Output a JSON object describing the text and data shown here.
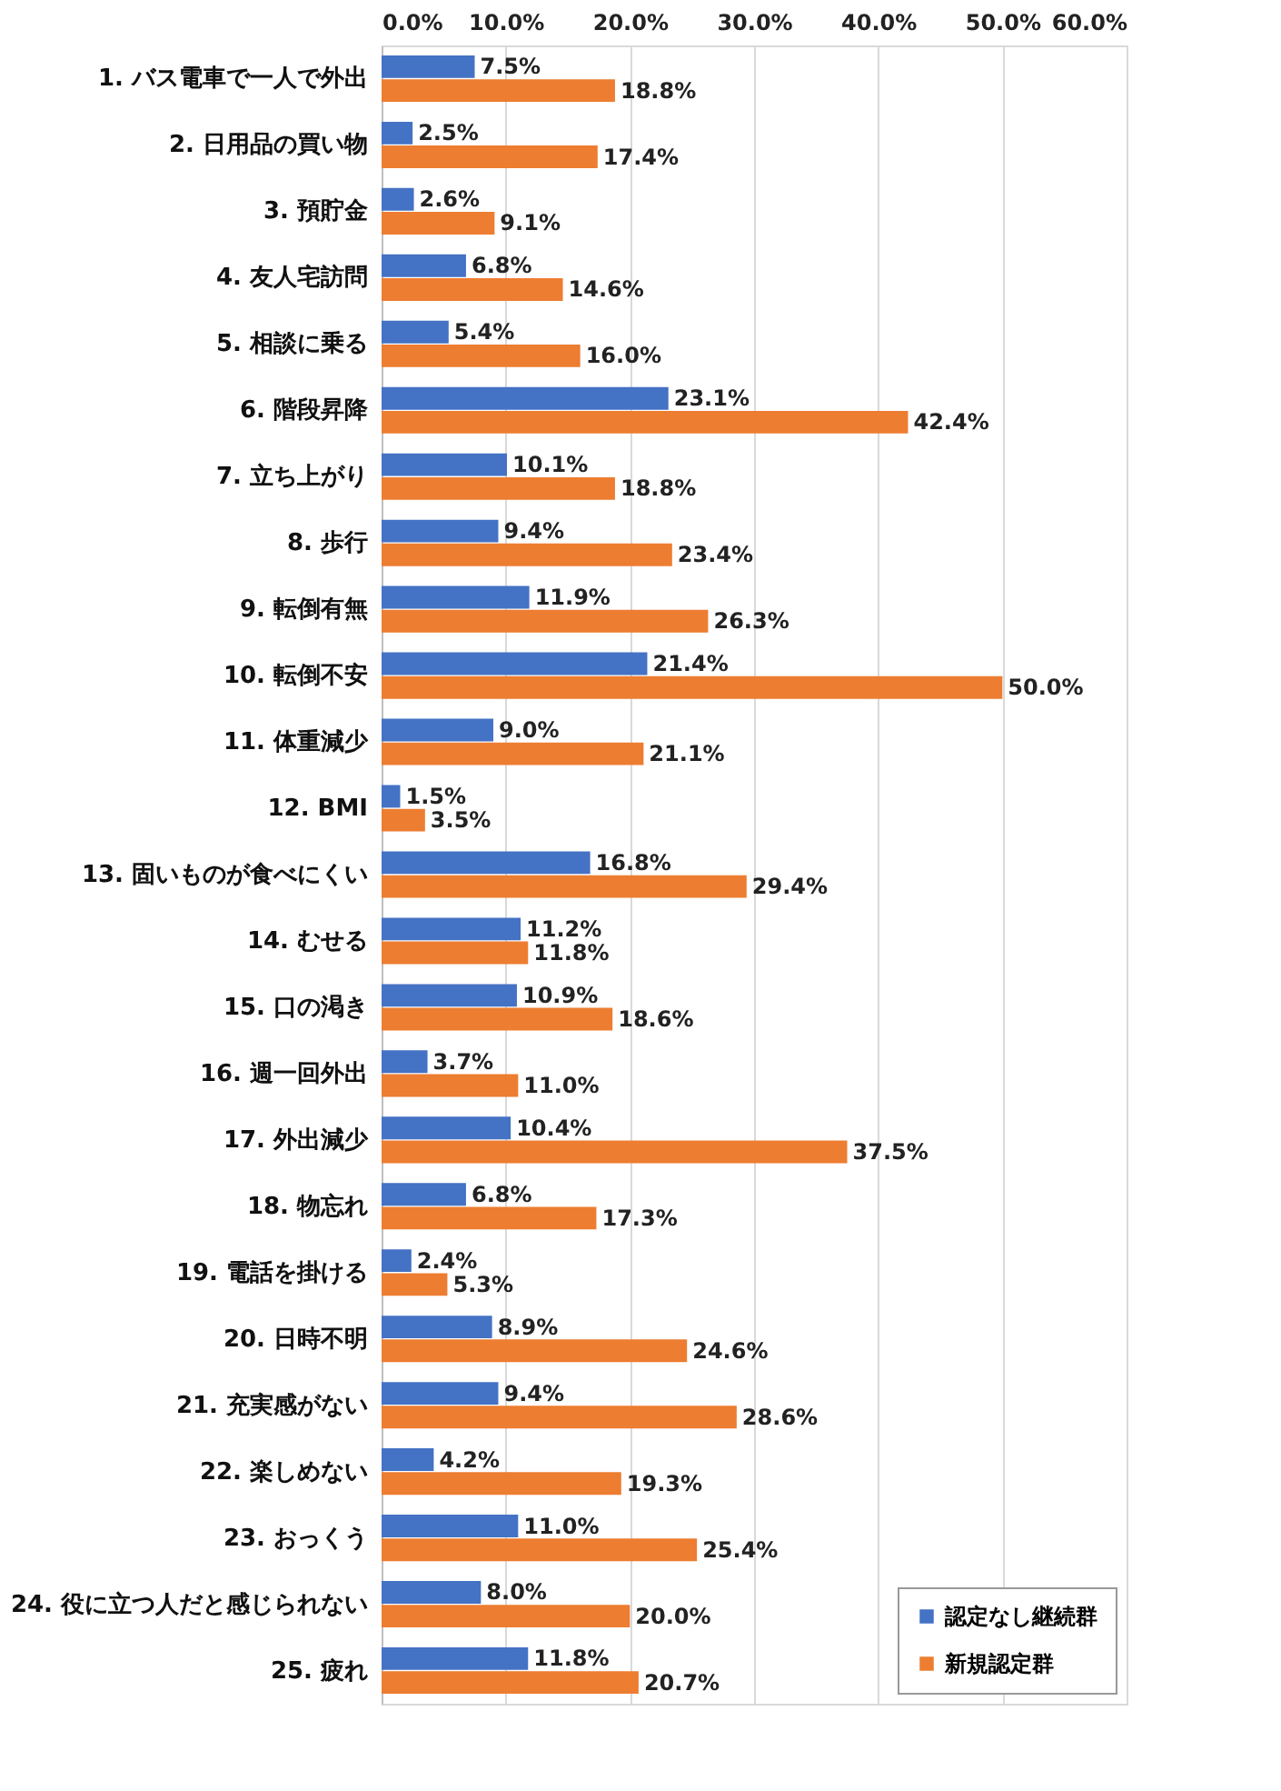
{
  "chart_data": {
    "type": "bar",
    "orientation": "horizontal",
    "categories": [
      "1. バス電車で一人で外出",
      "2. 日用品の買い物",
      "3. 預貯金",
      "4. 友人宅訪問",
      "5. 相談に乗る",
      "6. 階段昇降",
      "7. 立ち上がり",
      "8. 歩行",
      "9. 転倒有無",
      "10. 転倒不安",
      "11. 体重減少",
      "12. BMI",
      "13. 固いものが食べにくい",
      "14. むせる",
      "15. 口の渇き",
      "16. 週一回外出",
      "17. 外出減少",
      "18. 物忘れ",
      "19. 電話を掛ける",
      "20. 日時不明",
      "21. 充実感がない",
      "22. 楽しめない",
      "23. おっくう",
      "24. 役に立つ人だと感じられない",
      "25. 疲れ"
    ],
    "series": [
      {
        "name": "認定なし継続群",
        "color": "#4472c4",
        "values": [
          7.5,
          2.5,
          2.6,
          6.8,
          5.4,
          23.1,
          10.1,
          9.4,
          11.9,
          21.4,
          9.0,
          1.5,
          16.8,
          11.2,
          10.9,
          3.7,
          10.4,
          6.8,
          2.4,
          8.9,
          9.4,
          4.2,
          11.0,
          8.0,
          11.8
        ],
        "value_labels": [
          "7.5%",
          "2.5%",
          "2.6%",
          "6.8%",
          "5.4%",
          "23.1%",
          "10.1%",
          "9.4%",
          "11.9%",
          "21.4%",
          "9.0%",
          "1.5%",
          "16.8%",
          "11.2%",
          "10.9%",
          "3.7%",
          "10.4%",
          "6.8%",
          "2.4%",
          "8.9%",
          "9.4%",
          "4.2%",
          "11.0%",
          "8.0%",
          "11.8%"
        ]
      },
      {
        "name": "新規認定群",
        "color": "#ed7d31",
        "values": [
          18.8,
          17.4,
          9.1,
          14.6,
          16.0,
          42.4,
          18.8,
          23.4,
          26.3,
          50.0,
          21.1,
          3.5,
          29.4,
          11.8,
          18.6,
          11.0,
          37.5,
          17.3,
          5.3,
          24.6,
          28.6,
          19.3,
          25.4,
          20.0,
          20.7
        ],
        "value_labels": [
          "18.8%",
          "17.4%",
          "9.1%",
          "14.6%",
          "16.0%",
          "42.4%",
          "18.8%",
          "23.4%",
          "26.3%",
          "50.0%",
          "21.1%",
          "3.5%",
          "29.4%",
          "11.8%",
          "18.6%",
          "11.0%",
          "37.5%",
          "17.3%",
          "5.3%",
          "24.6%",
          "28.6%",
          "19.3%",
          "25.4%",
          "20.0%",
          "20.7%"
        ]
      }
    ],
    "xlim": [
      0,
      60
    ],
    "xticks": [
      {
        "value": 0,
        "label": "0.0%"
      },
      {
        "value": 10,
        "label": "10.0%"
      },
      {
        "value": 20,
        "label": "20.0%"
      },
      {
        "value": 30,
        "label": "30.0%"
      },
      {
        "value": 40,
        "label": "40.0%"
      },
      {
        "value": 50,
        "label": "50.0%"
      },
      {
        "value": 60,
        "label": "60.0%"
      }
    ],
    "grid": "x",
    "legend": "bottom right"
  }
}
